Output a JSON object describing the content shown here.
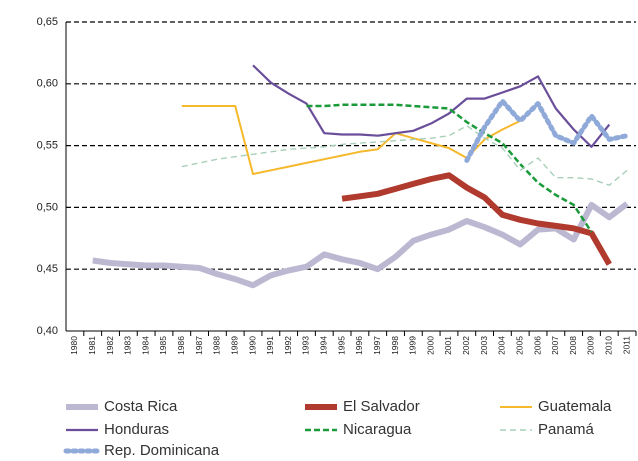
{
  "chart_data": {
    "type": "line",
    "categories": [
      "1980",
      "1981",
      "1982",
      "1983",
      "1984",
      "1985",
      "1986",
      "1987",
      "1988",
      "1989",
      "1990",
      "1991",
      "1992",
      "1993",
      "1994",
      "1995",
      "1996",
      "1997",
      "1998",
      "1999",
      "2000",
      "2001",
      "2002",
      "2003",
      "2004",
      "2005",
      "2006",
      "2007",
      "2008",
      "2009",
      "2010",
      "2011"
    ],
    "ylim": [
      0.4,
      0.65
    ],
    "yticks": [
      {
        "value": 0.4,
        "label": "0,40"
      },
      {
        "value": 0.45,
        "label": "0,45"
      },
      {
        "value": 0.5,
        "label": "0,50"
      },
      {
        "value": 0.55,
        "label": "0,55"
      },
      {
        "value": 0.6,
        "label": "0,60"
      },
      {
        "value": 0.65,
        "label": "0,65"
      }
    ],
    "grid": true,
    "series": [
      {
        "name": "Costa Rica",
        "color": "#bdb8d2",
        "values": [
          null,
          0.457,
          0.455,
          0.454,
          0.453,
          0.453,
          0.452,
          0.451,
          0.446,
          0.442,
          0.437,
          0.445,
          0.449,
          0.452,
          0.462,
          0.458,
          0.455,
          0.45,
          0.46,
          0.473,
          0.478,
          0.482,
          0.489,
          0.484,
          0.478,
          0.47,
          0.482,
          0.483,
          0.474,
          0.502,
          0.492,
          0.503
        ]
      },
      {
        "name": "El Salvador",
        "color": "#b03a2e",
        "values": [
          null,
          null,
          null,
          null,
          null,
          null,
          null,
          null,
          null,
          null,
          null,
          null,
          null,
          null,
          null,
          0.507,
          0.509,
          0.511,
          0.515,
          0.519,
          0.523,
          0.526,
          0.516,
          0.508,
          0.494,
          0.49,
          0.487,
          0.485,
          0.483,
          0.479,
          0.454,
          null
        ]
      },
      {
        "name": "Guatemala",
        "color": "#f6b82d",
        "values": [
          null,
          null,
          null,
          null,
          null,
          null,
          0.582,
          0.582,
          0.582,
          0.582,
          0.527,
          0.53,
          0.533,
          0.536,
          0.539,
          0.542,
          0.545,
          0.547,
          0.56,
          0.556,
          0.552,
          0.548,
          0.54,
          0.555,
          0.563,
          0.57,
          null,
          null,
          null,
          null,
          null,
          null
        ]
      },
      {
        "name": "Honduras",
        "color": "#6a4e9a",
        "values": [
          null,
          null,
          null,
          null,
          null,
          null,
          null,
          null,
          null,
          null,
          0.615,
          0.601,
          0.592,
          0.584,
          0.56,
          0.559,
          0.559,
          0.558,
          0.56,
          0.562,
          0.568,
          0.576,
          0.588,
          0.588,
          0.593,
          0.598,
          0.606,
          0.58,
          0.563,
          0.549,
          0.567,
          null
        ]
      },
      {
        "name": "Nicaragua",
        "color": "#1a9a3a",
        "values": [
          null,
          null,
          null,
          null,
          null,
          null,
          null,
          null,
          null,
          null,
          null,
          null,
          null,
          0.582,
          0.582,
          0.583,
          0.583,
          0.583,
          0.583,
          0.582,
          0.581,
          0.58,
          0.569,
          0.56,
          0.552,
          0.535,
          0.52,
          0.51,
          0.502,
          0.48,
          null,
          null
        ]
      },
      {
        "name": "Panamá",
        "color": "#a8d0b8",
        "values": [
          null,
          null,
          null,
          null,
          null,
          null,
          0.533,
          0.536,
          0.539,
          0.541,
          0.543,
          0.545,
          0.547,
          0.548,
          0.549,
          0.551,
          0.552,
          0.553,
          0.554,
          0.555,
          0.556,
          0.558,
          0.566,
          0.556,
          0.548,
          0.53,
          0.54,
          0.524,
          0.524,
          0.523,
          0.518,
          0.53
        ]
      },
      {
        "name": "Rep. Dominicana",
        "color": "#8fa9d8",
        "values": [
          null,
          null,
          null,
          null,
          null,
          null,
          null,
          null,
          null,
          null,
          null,
          null,
          null,
          null,
          null,
          null,
          null,
          null,
          null,
          null,
          null,
          null,
          0.538,
          0.565,
          0.586,
          0.57,
          0.584,
          0.558,
          0.552,
          0.574,
          0.555,
          0.558
        ]
      }
    ]
  }
}
